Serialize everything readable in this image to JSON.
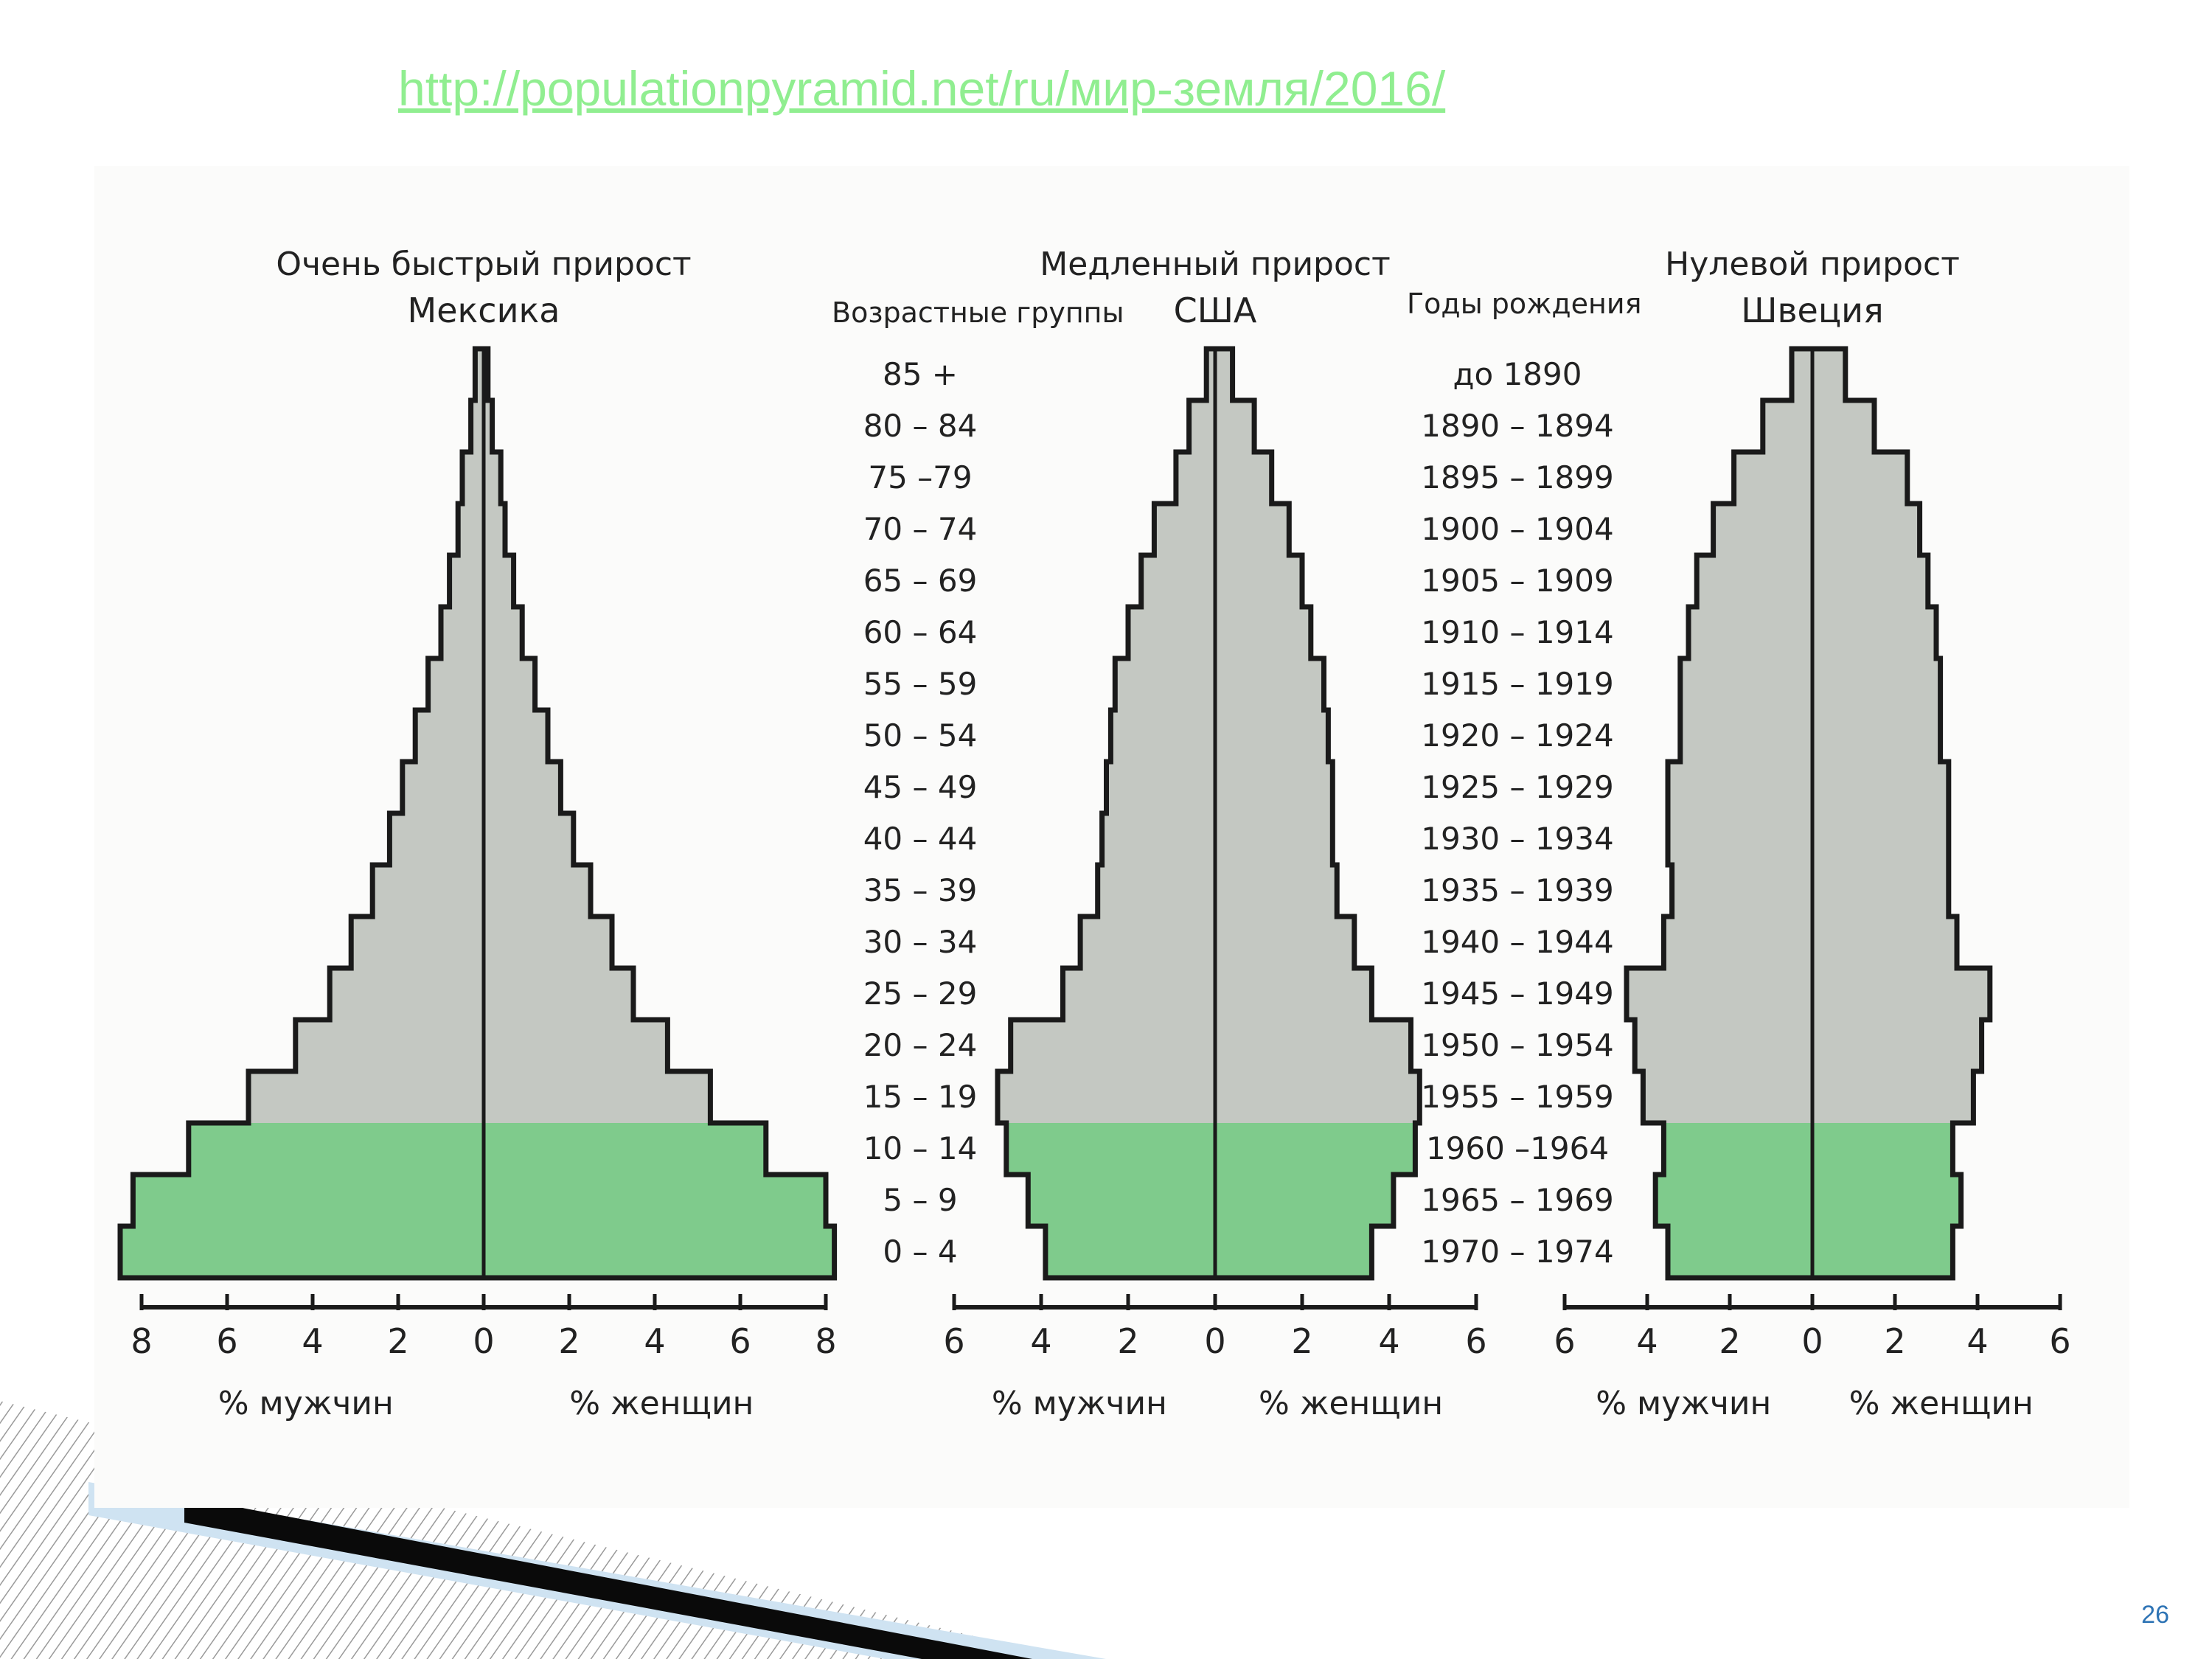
{
  "slide": {
    "link_text": "http://populationpyramid.net/ru/мир-земля/2016/",
    "page_number": "26"
  },
  "colors": {
    "older_fill": "#c4c8c2",
    "younger_fill": "#7fcb8c",
    "outline": "#1a1a1a",
    "link": "#90ee90",
    "page_number": "#2e74b5"
  },
  "chart_data": [
    {
      "type": "population-pyramid",
      "title": "Очень быстрый прирост",
      "subtitle": "Мексика",
      "xlabel_left": "% мужчин",
      "xlabel_right": "% женщин",
      "xlim": [
        -8,
        8
      ],
      "ticks": [
        "8",
        "6",
        "4",
        "2",
        "0",
        "2",
        "4",
        "6",
        "8"
      ],
      "categories": [
        "0 – 4",
        "5 – 9",
        "10 – 14",
        "15 – 19",
        "20 – 24",
        "25 – 29",
        "30 – 34",
        "35 – 39",
        "40 – 44",
        "45 – 49",
        "50 – 54",
        "55 – 59",
        "60 – 64",
        "65 – 69",
        "70 – 74",
        "75 –79",
        "80 – 84",
        "85 +"
      ],
      "series": [
        {
          "name": "% мужчин",
          "values": [
            8.5,
            8.2,
            6.9,
            5.5,
            4.4,
            3.6,
            3.1,
            2.6,
            2.2,
            1.9,
            1.6,
            1.3,
            1.0,
            0.8,
            0.6,
            0.5,
            0.3,
            0.2
          ]
        },
        {
          "name": "% женщин",
          "values": [
            8.2,
            8.0,
            6.6,
            5.3,
            4.3,
            3.5,
            3.0,
            2.5,
            2.1,
            1.8,
            1.5,
            1.2,
            0.9,
            0.7,
            0.5,
            0.4,
            0.2,
            0.1
          ]
        }
      ]
    },
    {
      "type": "population-pyramid",
      "title": "Медленный прирост",
      "subtitle": "США",
      "xlabel_left": "% мужчин",
      "xlabel_right": "% женщин",
      "xlim": [
        -6,
        6
      ],
      "ticks": [
        "6",
        "4",
        "2",
        "0",
        "2",
        "4",
        "6"
      ],
      "categories": [
        "0 – 4",
        "5 – 9",
        "10 – 14",
        "15 – 19",
        "20 – 24",
        "25 – 29",
        "30 – 34",
        "35 – 39",
        "40 – 44",
        "45 – 49",
        "50 – 54",
        "55 – 59",
        "60 – 64",
        "65 – 69",
        "70 – 74",
        "75 –79",
        "80 – 84",
        "85 +"
      ],
      "series": [
        {
          "name": "% мужчин",
          "values": [
            3.9,
            4.3,
            4.8,
            5.0,
            4.7,
            3.5,
            3.1,
            2.7,
            2.6,
            2.5,
            2.4,
            2.3,
            2.0,
            1.7,
            1.4,
            0.9,
            0.6,
            0.2
          ]
        },
        {
          "name": "% женщин",
          "values": [
            3.6,
            4.1,
            4.6,
            4.7,
            4.5,
            3.6,
            3.2,
            2.8,
            2.7,
            2.7,
            2.6,
            2.5,
            2.2,
            2.0,
            1.7,
            1.3,
            0.9,
            0.4
          ]
        }
      ]
    },
    {
      "type": "population-pyramid",
      "title": "Нулевой прирост",
      "subtitle": "Швеция",
      "xlabel_left": "% мужчин",
      "xlabel_right": "% женщин",
      "xlim": [
        -6,
        6
      ],
      "ticks": [
        "6",
        "4",
        "2",
        "0",
        "2",
        "4",
        "6"
      ],
      "categories": [
        "0 – 4",
        "5 – 9",
        "10 – 14",
        "15 – 19",
        "20 – 24",
        "25 – 29",
        "30 – 34",
        "35 – 39",
        "40 – 44",
        "45 – 49",
        "50 – 54",
        "55 – 59",
        "60 – 64",
        "65 – 69",
        "70 – 74",
        "75 –79",
        "80 – 84",
        "85 +"
      ],
      "series": [
        {
          "name": "% мужчин",
          "values": [
            3.5,
            3.8,
            3.6,
            4.1,
            4.3,
            4.5,
            3.6,
            3.4,
            3.5,
            3.5,
            3.2,
            3.2,
            3.0,
            2.8,
            2.4,
            1.9,
            1.2,
            0.5
          ]
        },
        {
          "name": "% женщин",
          "values": [
            3.4,
            3.6,
            3.4,
            3.9,
            4.1,
            4.3,
            3.5,
            3.3,
            3.3,
            3.3,
            3.1,
            3.1,
            3.0,
            2.8,
            2.6,
            2.3,
            1.5,
            0.8
          ]
        }
      ]
    }
  ],
  "age_groups_title": "Возрастные группы",
  "birth_years_title": "Годы рождения",
  "birth_years": [
    "1970 – 1974",
    "1965 – 1969",
    "1960 –1964",
    "1955 – 1959",
    "1950 – 1954",
    "1945 – 1949",
    "1940 – 1944",
    "1935 – 1939",
    "1930 – 1934",
    "1925 – 1929",
    "1920 – 1924",
    "1915 – 1919",
    "1910 – 1914",
    "1905 – 1909",
    "1900 – 1904",
    "1895 – 1899",
    "1890 – 1894",
    "до 1890"
  ]
}
